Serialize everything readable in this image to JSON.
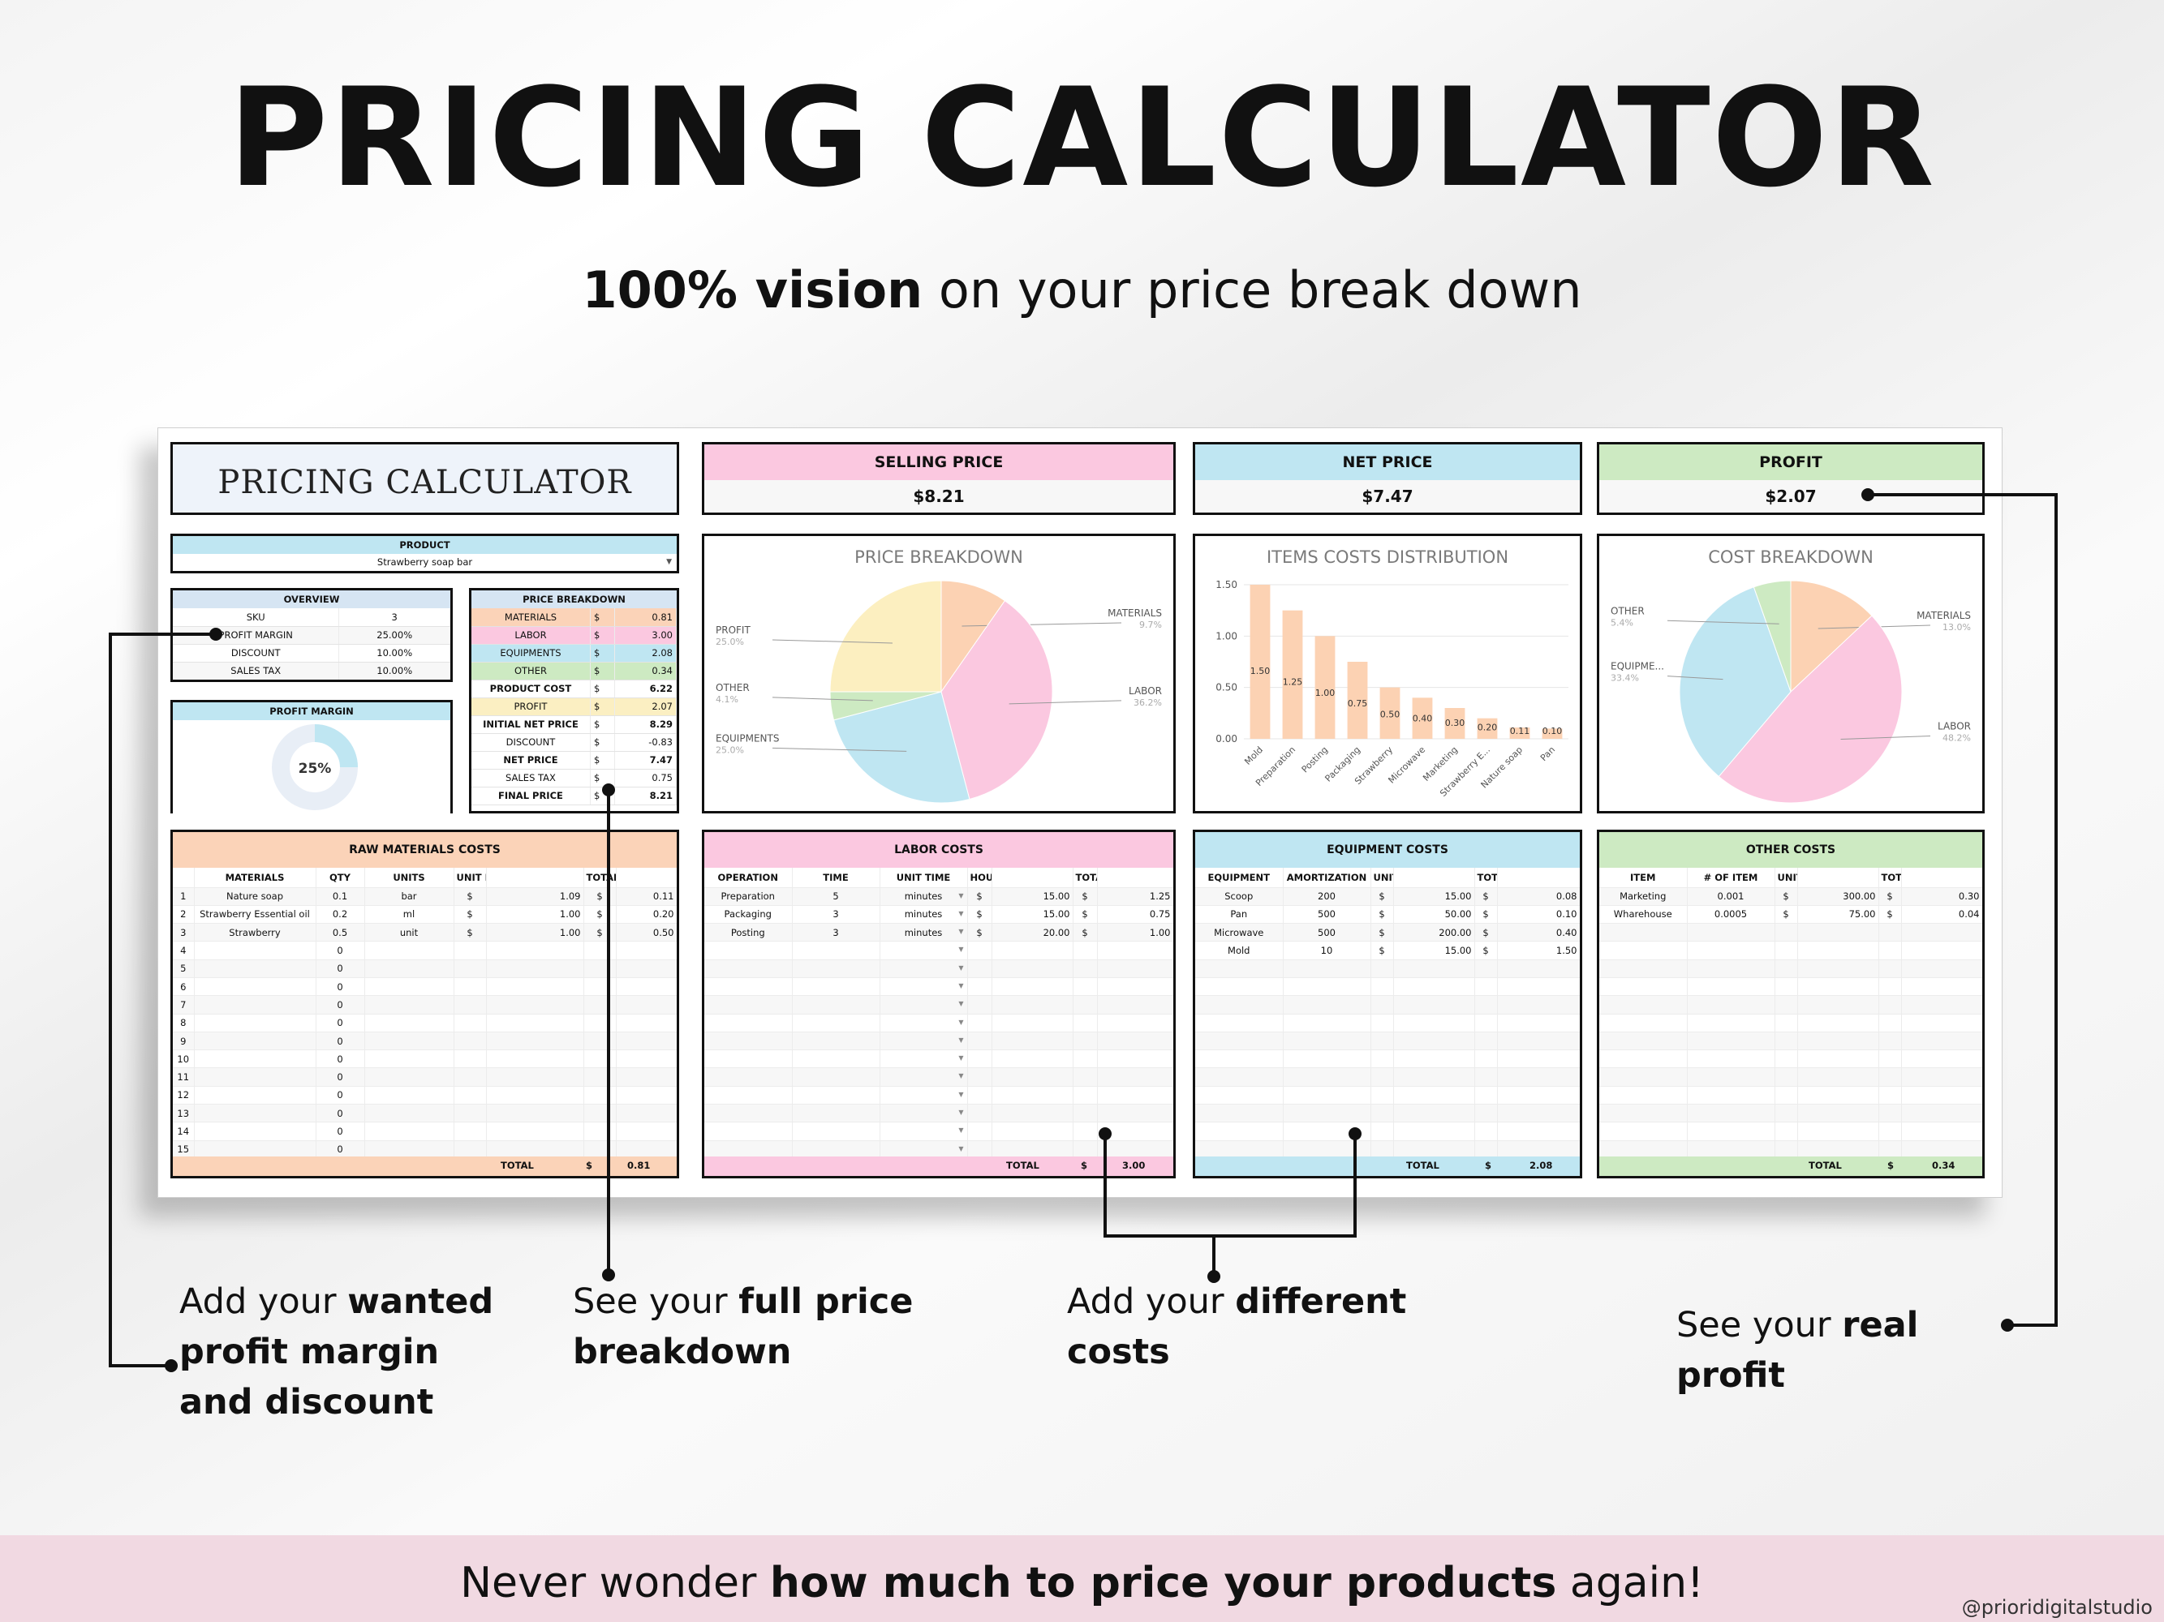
{
  "page": {
    "title": "PRICING CALCULATOR",
    "subtitle_bold": "100% vision",
    "subtitle_rest": " on your price break down",
    "footer_pre": "Never wonder ",
    "footer_bold": "how much to price your products",
    "footer_post": " again!",
    "handle": "@prioridigitalstudio"
  },
  "callouts": [
    {
      "pre": "Add your ",
      "bold": "wanted profit margin and discount",
      "post": ""
    },
    {
      "pre": "See your ",
      "bold": "full price breakdown",
      "post": ""
    },
    {
      "pre": "Add your ",
      "bold": "different costs",
      "post": ""
    },
    {
      "pre": "See your ",
      "bold": "real profit",
      "post": ""
    }
  ],
  "sheet": {
    "title": "PRICING CALCULATOR",
    "kpis": [
      {
        "label": "SELLING PRICE",
        "value": "$8.21",
        "color": "#fbc8e0"
      },
      {
        "label": "NET PRICE",
        "value": "$7.47",
        "color": "#bfe6f2"
      },
      {
        "label": "PROFIT",
        "value": "$2.07",
        "color": "#cdeac2"
      }
    ],
    "product": {
      "label": "PRODUCT",
      "value": "Strawberry soap bar"
    },
    "overview": {
      "label": "OVERVIEW",
      "rows": [
        [
          "SKU",
          "3"
        ],
        [
          "PROFIT MARGIN",
          "25.00%"
        ],
        [
          "DISCOUNT",
          "10.00%"
        ],
        [
          "SALES TAX",
          "10.00%"
        ]
      ]
    },
    "profit_margin": {
      "label": "PROFIT MARGIN",
      "value": "25%",
      "fraction": 0.25
    },
    "price_breakdown": {
      "label": "PRICE BREAKDOWN",
      "rows": [
        {
          "name": "MATERIALS",
          "cur": "$",
          "val": "0.81",
          "bg": "#fbd3b8",
          "bold": false
        },
        {
          "name": "LABOR",
          "cur": "$",
          "val": "3.00",
          "bg": "#fbc8e0",
          "bold": false
        },
        {
          "name": "EQUIPMENTS",
          "cur": "$",
          "val": "2.08",
          "bg": "#bfe6f2",
          "bold": false
        },
        {
          "name": "OTHER",
          "cur": "$",
          "val": "0.34",
          "bg": "#cdeac2",
          "bold": false
        },
        {
          "name": "PRODUCT COST",
          "cur": "$",
          "val": "6.22",
          "bg": "#ffffff",
          "bold": true
        },
        {
          "name": "PROFIT",
          "cur": "$",
          "val": "2.07",
          "bg": "#fbefc2",
          "bold": false
        },
        {
          "name": "INITIAL NET PRICE",
          "cur": "$",
          "val": "8.29",
          "bg": "#ffffff",
          "bold": true
        },
        {
          "name": "DISCOUNT",
          "cur": "$",
          "val": "-0.83",
          "bg": "#ffffff",
          "bold": false
        },
        {
          "name": "NET PRICE",
          "cur": "$",
          "val": "7.47",
          "bg": "#ffffff",
          "bold": true
        },
        {
          "name": "SALES TAX",
          "cur": "$",
          "val": "0.75",
          "bg": "#ffffff",
          "bold": false
        },
        {
          "name": "FINAL PRICE",
          "cur": "$",
          "val": "8.21",
          "bg": "#ffffff",
          "bold": true
        }
      ]
    },
    "raw": {
      "label": "RAW MATERIALS COSTS",
      "color": "#fbd3b8",
      "headers": [
        "",
        "MATERIALS",
        "QTY",
        "UNITS",
        "UNIT PRICE",
        "",
        "TOTAL COST",
        ""
      ],
      "rows": [
        [
          "1",
          "Nature soap",
          "0.1",
          "bar",
          "$",
          "1.09",
          "$",
          "0.11"
        ],
        [
          "2",
          "Strawberry Essential oil",
          "0.2",
          "ml",
          "$",
          "1.00",
          "$",
          "0.20"
        ],
        [
          "3",
          "Strawberry",
          "0.5",
          "unit",
          "$",
          "1.00",
          "$",
          "0.50"
        ],
        [
          "4",
          "",
          "0",
          "",
          "",
          "",
          "",
          ""
        ],
        [
          "5",
          "",
          "0",
          "",
          "",
          "",
          "",
          ""
        ],
        [
          "6",
          "",
          "0",
          "",
          "",
          "",
          "",
          ""
        ],
        [
          "7",
          "",
          "0",
          "",
          "",
          "",
          "",
          ""
        ],
        [
          "8",
          "",
          "0",
          "",
          "",
          "",
          "",
          ""
        ],
        [
          "9",
          "",
          "0",
          "",
          "",
          "",
          "",
          ""
        ],
        [
          "10",
          "",
          "0",
          "",
          "",
          "",
          "",
          ""
        ],
        [
          "11",
          "",
          "0",
          "",
          "",
          "",
          "",
          ""
        ],
        [
          "12",
          "",
          "0",
          "",
          "",
          "",
          "",
          ""
        ],
        [
          "13",
          "",
          "0",
          "",
          "",
          "",
          "",
          ""
        ],
        [
          "14",
          "",
          "0",
          "",
          "",
          "",
          "",
          ""
        ],
        [
          "15",
          "",
          "0",
          "",
          "",
          "",
          "",
          ""
        ]
      ],
      "total_label": "TOTAL",
      "total_cur": "$",
      "total": "0.81"
    },
    "labor": {
      "label": "LABOR COSTS",
      "color": "#fbc8e0",
      "headers": [
        "OPERATION",
        "TIME",
        "UNIT TIME",
        "HOURLY RATE",
        "",
        "TOTAL COST",
        ""
      ],
      "rows": [
        [
          "Preparation",
          "5",
          "minutes",
          "$",
          "15.00",
          "$",
          "1.25"
        ],
        [
          "Packaging",
          "3",
          "minutes",
          "$",
          "15.00",
          "$",
          "0.75"
        ],
        [
          "Posting",
          "3",
          "minutes",
          "$",
          "20.00",
          "$",
          "1.00"
        ]
      ],
      "total_label": "TOTAL",
      "total_cur": "$",
      "total": "3.00"
    },
    "equipment": {
      "label": "EQUIPMENT COSTS",
      "color": "#bfe6f2",
      "headers": [
        "EQUIPMENT",
        "AMORTIZATION",
        "UNIT COST",
        "",
        "TOTAL COST",
        ""
      ],
      "rows": [
        [
          "Scoop",
          "200",
          "$",
          "15.00",
          "$",
          "0.08"
        ],
        [
          "Pan",
          "500",
          "$",
          "50.00",
          "$",
          "0.10"
        ],
        [
          "Microwave",
          "500",
          "$",
          "200.00",
          "$",
          "0.40"
        ],
        [
          "Mold",
          "10",
          "$",
          "15.00",
          "$",
          "1.50"
        ]
      ],
      "total_label": "TOTAL",
      "total_cur": "$",
      "total": "2.08"
    },
    "other": {
      "label": "OTHER COSTS",
      "color": "#cdeac2",
      "headers": [
        "ITEM",
        "# OF ITEM",
        "UNIT COST",
        "",
        "TOTAL COST",
        ""
      ],
      "rows": [
        [
          "Marketing",
          "0.001",
          "$",
          "300.00",
          "$",
          "0.30"
        ],
        [
          "Wharehouse",
          "0.0005",
          "$",
          "75.00",
          "$",
          "0.04"
        ]
      ],
      "total_label": "TOTAL",
      "total_cur": "$",
      "total": "0.34"
    }
  },
  "chart_data": [
    {
      "type": "pie",
      "title": "PRICE BREAKDOWN",
      "slices": [
        {
          "label": "MATERIALS",
          "pct_text": "9.7%",
          "value": 9.7,
          "color": "#fcd2b3"
        },
        {
          "label": "LABOR",
          "pct_text": "36.2%",
          "value": 36.2,
          "color": "#fbc8e0"
        },
        {
          "label": "EQUIPMENTS",
          "pct_text": "25.0%",
          "value": 25.0,
          "color": "#bfe6f2"
        },
        {
          "label": "OTHER",
          "pct_text": "4.1%",
          "value": 4.1,
          "color": "#cdeac2"
        },
        {
          "label": "PROFIT",
          "pct_text": "25.0%",
          "value": 25.0,
          "color": "#fcefc0"
        }
      ]
    },
    {
      "type": "bar",
      "title": "ITEMS COSTS DISTRIBUTION",
      "categories": [
        "Mold",
        "Preparation",
        "Posting",
        "Packaging",
        "Strawberry",
        "Microwave",
        "Marketing",
        "Strawberry E...",
        "Nature soap",
        "Pan"
      ],
      "values": [
        1.5,
        1.25,
        1.0,
        0.75,
        0.5,
        0.4,
        0.3,
        0.2,
        0.11,
        0.1
      ],
      "labels": [
        "1.50",
        "1.25",
        "1.00",
        "0.75",
        "0.50",
        "0.40",
        "0.30",
        "0.20",
        "0.11",
        "0.10"
      ],
      "yticks": [
        "0.00",
        "0.50",
        "1.00",
        "1.50"
      ],
      "ylim": [
        0,
        1.5
      ],
      "color": "#fcd2b3"
    },
    {
      "type": "pie",
      "title": "COST BREAKDOWN",
      "slices": [
        {
          "label": "MATERIALS",
          "pct_text": "13.0%",
          "value": 13.0,
          "color": "#fcd2b3"
        },
        {
          "label": "LABOR",
          "pct_text": "48.2%",
          "value": 48.2,
          "color": "#fbc8e0"
        },
        {
          "label": "EQUIPME...",
          "pct_text": "33.4%",
          "value": 33.4,
          "color": "#bfe6f2"
        },
        {
          "label": "OTHER",
          "pct_text": "5.4%",
          "value": 5.4,
          "color": "#cdeac2"
        }
      ]
    }
  ]
}
